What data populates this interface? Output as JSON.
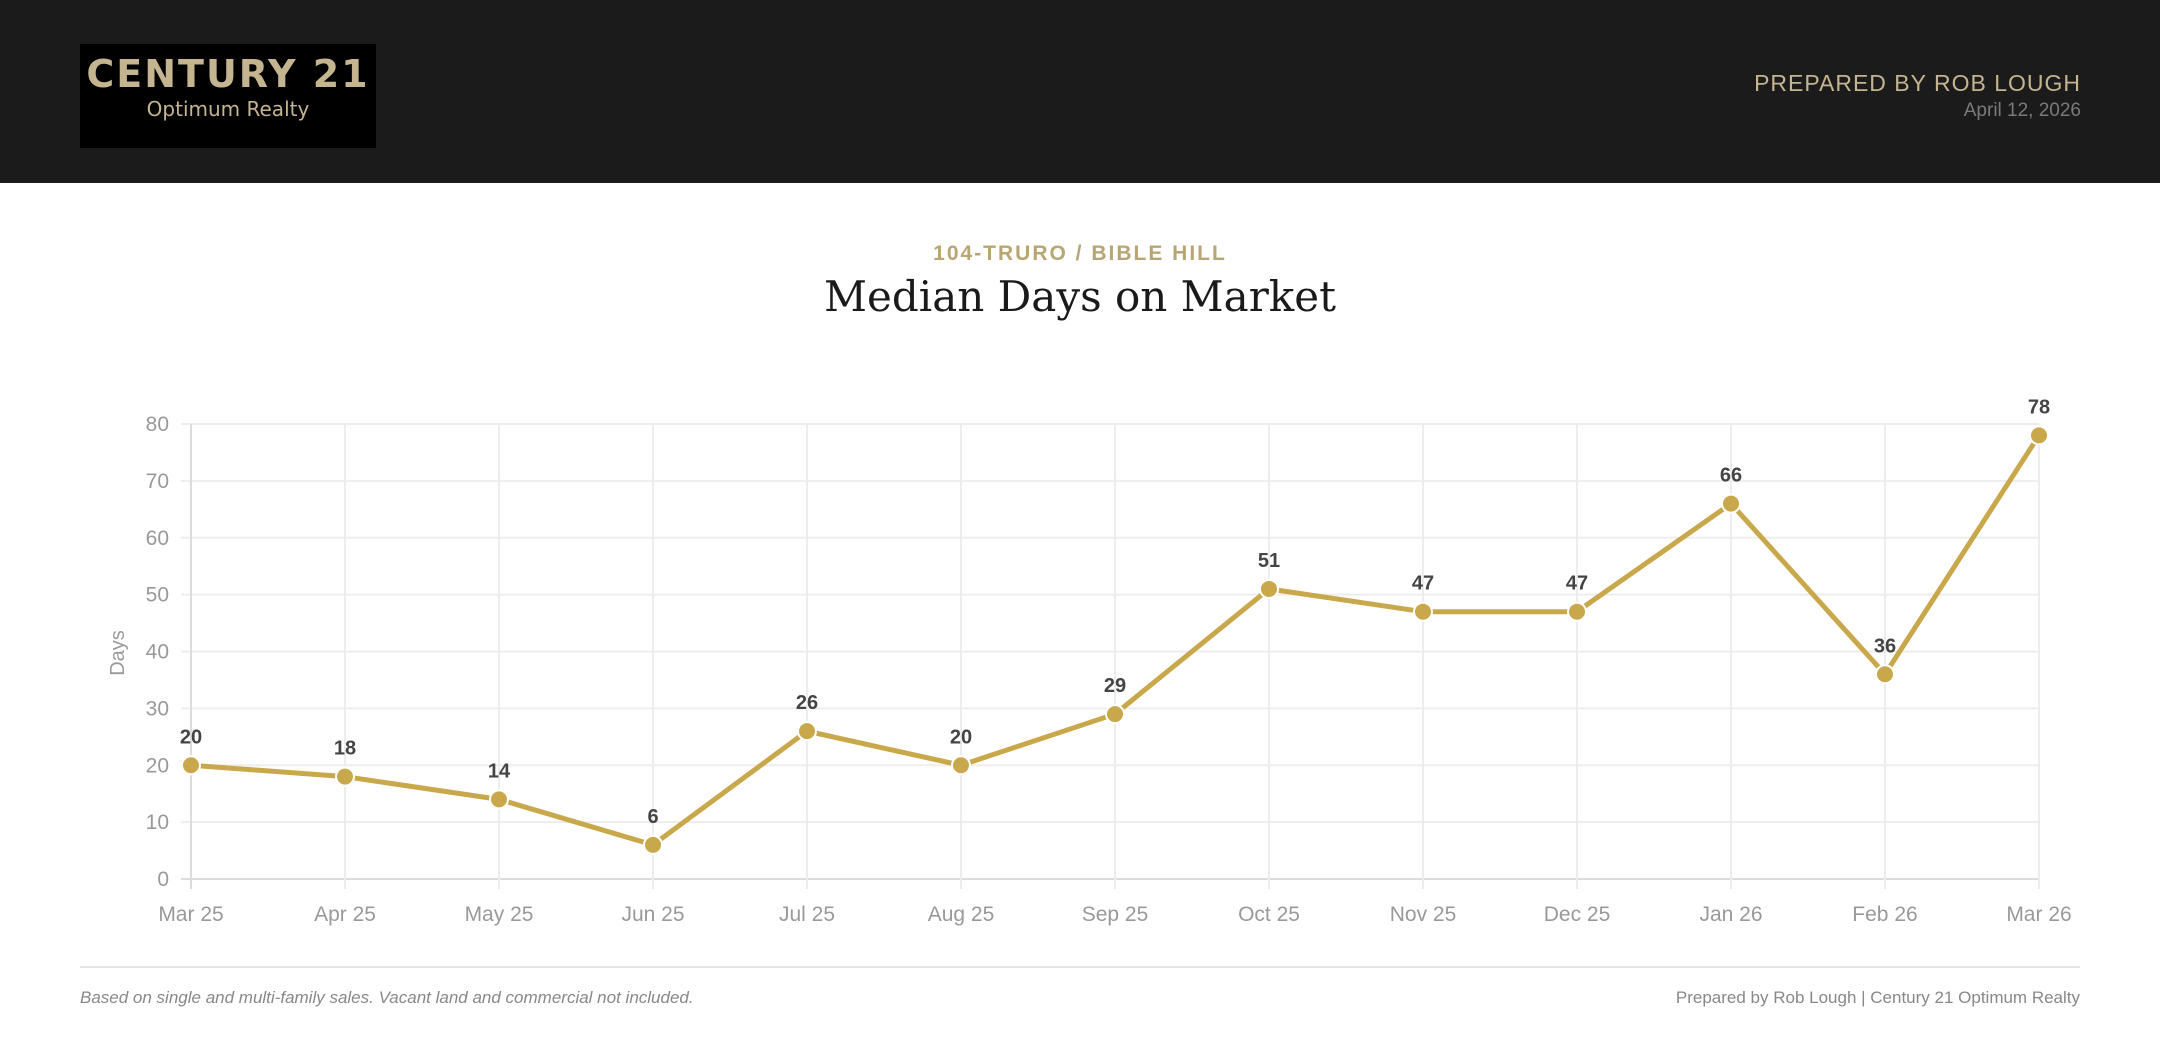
{
  "header": {
    "logo_line1": "CENTURY 21",
    "logo_line2": "Optimum Realty",
    "prepared_by": "PREPARED BY ROB LOUGH",
    "date": "April 12, 2026",
    "background": "#1b1b1b",
    "accent": "#c4b48f"
  },
  "subtitle": "104-TRURO / BIBLE HILL",
  "title": "Median Days on Market",
  "chart_data": {
    "type": "line",
    "title": "Median Days on Market",
    "xlabel": "",
    "ylabel": "Days",
    "ylim": [
      0,
      80
    ],
    "yticks": [
      0,
      10,
      20,
      30,
      40,
      50,
      60,
      70,
      80
    ],
    "grid": true,
    "categories": [
      "Mar 25",
      "Apr 25",
      "May 25",
      "Jun 25",
      "Jul 25",
      "Aug 25",
      "Sep 25",
      "Oct 25",
      "Nov 25",
      "Dec 25",
      "Jan 26",
      "Feb 26",
      "Mar 26"
    ],
    "values": [
      20,
      18,
      14,
      6,
      26,
      20,
      29,
      51,
      47,
      47,
      66,
      36,
      78
    ],
    "data_labels": true,
    "color": "#c9a84c"
  },
  "footer": {
    "note": "Based on single and multi-family sales. Vacant land and commercial not included.",
    "credit": "Prepared by Rob Lough | Century 21 Optimum Realty"
  }
}
